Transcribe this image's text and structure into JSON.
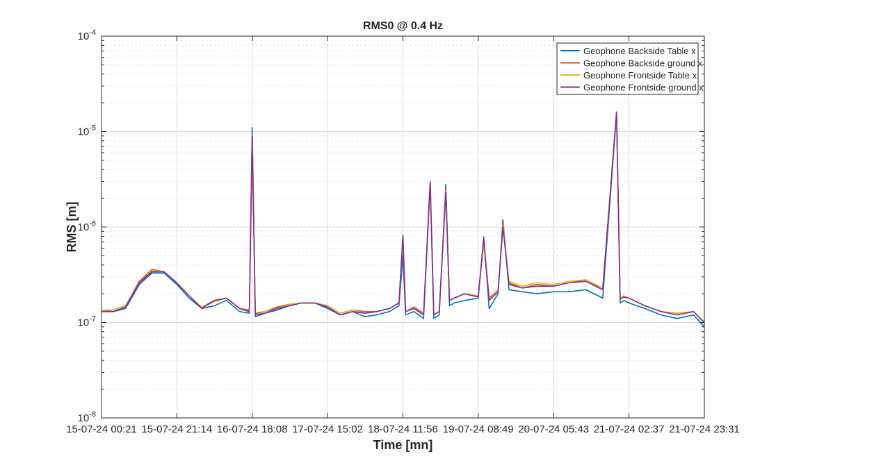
{
  "chart_data": {
    "type": "line",
    "title": "RMS0 @ 0.4 Hz",
    "xlabel": "Time [mn]",
    "ylabel": "RMS [m]",
    "yscale": "log",
    "ylim": [
      1e-08,
      0.0001
    ],
    "y_ticks": [
      "10^-8",
      "10^-7",
      "10^-6",
      "10^-5",
      "10^-4"
    ],
    "x_tick_labels": [
      "15-07-24 00:21",
      "15-07-24 21:14",
      "16-07-24 18:08",
      "17-07-24 15:02",
      "18-07-24 11:56",
      "19-07-24 08:49",
      "20-07-24 05:43",
      "21-07-24 02:37",
      "21-07-24 23:31"
    ],
    "grid": true,
    "legend_position": "top-right",
    "x": [
      "15-07-24 00:21",
      "15-07-24 03:40",
      "15-07-24 07:00",
      "15-07-24 10:50",
      "15-07-24 14:20",
      "15-07-24 17:40",
      "15-07-24 21:14",
      "16-07-24 00:40",
      "16-07-24 04:10",
      "16-07-24 07:40",
      "16-07-24 11:00",
      "16-07-24 14:40",
      "16-07-24 17:20",
      "16-07-24 18:08",
      "16-07-24 19:00",
      "16-07-24 21:40",
      "17-07-24 01:00",
      "17-07-24 04:30",
      "17-07-24 07:50",
      "17-07-24 11:30",
      "17-07-24 15:02",
      "17-07-24 18:30",
      "17-07-24 22:00",
      "18-07-24 01:20",
      "18-07-24 04:40",
      "18-07-24 08:10",
      "18-07-24 10:50",
      "18-07-24 11:56",
      "18-07-24 12:40",
      "18-07-24 15:00",
      "18-07-24 17:40",
      "18-07-24 19:30",
      "18-07-24 20:30",
      "18-07-24 22:00",
      "18-07-24 23:50",
      "19-07-24 00:50",
      "19-07-24 02:10",
      "19-07-24 05:00",
      "19-07-24 08:49",
      "19-07-24 10:20",
      "19-07-24 11:50",
      "19-07-24 14:20",
      "19-07-24 15:40",
      "19-07-24 17:20",
      "19-07-24 21:00",
      "20-07-24 01:00",
      "20-07-24 05:43",
      "20-07-24 10:00",
      "20-07-24 14:40",
      "20-07-24 19:20",
      "20-07-24 23:10",
      "21-07-24 00:10",
      "21-07-24 01:10",
      "21-07-24 02:37",
      "21-07-24 07:00",
      "21-07-24 11:30",
      "21-07-24 16:00",
      "21-07-24 20:30",
      "21-07-24 23:31"
    ],
    "series": [
      {
        "name": "Geophone Backside Table x",
        "color": "#0072BD",
        "values": [
          1.3e-07,
          1.3e-07,
          1.4e-07,
          2.5e-07,
          3.3e-07,
          3.3e-07,
          2.5e-07,
          1.8e-07,
          1.4e-07,
          1.5e-07,
          1.7e-07,
          1.3e-07,
          1.25e-07,
          1.1e-05,
          1.15e-07,
          1.25e-07,
          1.35e-07,
          1.5e-07,
          1.6e-07,
          1.6e-07,
          1.4e-07,
          1.2e-07,
          1.3e-07,
          1.15e-07,
          1.2e-07,
          1.3e-07,
          1.5e-07,
          5e-07,
          1.2e-07,
          1.3e-07,
          1.1e-07,
          2.8e-06,
          1.1e-07,
          1.2e-07,
          2.8e-06,
          1.5e-07,
          1.6e-07,
          1.7e-07,
          1.8e-07,
          7.9e-07,
          1.4e-07,
          2e-07,
          1.2e-06,
          2.2e-07,
          2.1e-07,
          2e-07,
          2.1e-07,
          2.1e-07,
          2.2e-07,
          1.8e-07,
          1.5e-05,
          1.6e-07,
          1.7e-07,
          1.6e-07,
          1.4e-07,
          1.2e-07,
          1.1e-07,
          1.2e-07,
          9e-08
        ]
      },
      {
        "name": "Geophone Backside ground x",
        "color": "#D95319",
        "values": [
          1.3e-07,
          1.35e-07,
          1.5e-07,
          2.7e-07,
          3.6e-07,
          3.4e-07,
          2.6e-07,
          1.9e-07,
          1.45e-07,
          1.7e-07,
          1.8e-07,
          1.4e-07,
          1.35e-07,
          9.5e-06,
          1.25e-07,
          1.3e-07,
          1.45e-07,
          1.55e-07,
          1.6e-07,
          1.6e-07,
          1.5e-07,
          1.25e-07,
          1.35e-07,
          1.3e-07,
          1.3e-07,
          1.4e-07,
          1.6e-07,
          8e-07,
          1.3e-07,
          1.45e-07,
          1.25e-07,
          3e-06,
          1.2e-07,
          1.3e-07,
          2.5e-06,
          1.7e-07,
          1.8e-07,
          2e-07,
          1.9e-07,
          7e-07,
          1.8e-07,
          2.2e-07,
          1.1e-06,
          2.6e-07,
          2.3e-07,
          2.5e-07,
          2.4e-07,
          2.6e-07,
          2.8e-07,
          2.2e-07,
          1.6e-05,
          1.8e-07,
          1.9e-07,
          1.8e-07,
          1.5e-07,
          1.3e-07,
          1.25e-07,
          1.3e-07,
          1e-07
        ]
      },
      {
        "name": "Geophone Frontside Table x",
        "color": "#EDB120",
        "values": [
          1.35e-07,
          1.35e-07,
          1.5e-07,
          2.6e-07,
          3.5e-07,
          3.4e-07,
          2.6e-07,
          1.9e-07,
          1.45e-07,
          1.65e-07,
          1.8e-07,
          1.4e-07,
          1.3e-07,
          9.3e-06,
          1.2e-07,
          1.3e-07,
          1.4e-07,
          1.55e-07,
          1.6e-07,
          1.6e-07,
          1.5e-07,
          1.25e-07,
          1.35e-07,
          1.25e-07,
          1.3e-07,
          1.4e-07,
          1.6e-07,
          7.8e-07,
          1.3e-07,
          1.4e-07,
          1.2e-07,
          2.9e-06,
          1.2e-07,
          1.3e-07,
          2.4e-06,
          1.7e-07,
          1.8e-07,
          2e-07,
          1.9e-07,
          6.8e-07,
          1.7e-07,
          2.2e-07,
          1.05e-06,
          2.7e-07,
          2.4e-07,
          2.6e-07,
          2.5e-07,
          2.7e-07,
          2.8e-07,
          2.3e-07,
          1.55e-05,
          1.8e-07,
          1.9e-07,
          1.8e-07,
          1.5e-07,
          1.3e-07,
          1.25e-07,
          1.3e-07,
          1e-07
        ]
      },
      {
        "name": "Geophone Frontside ground x",
        "color": "#7E2F8E",
        "values": [
          1.3e-07,
          1.3e-07,
          1.45e-07,
          2.6e-07,
          3.4e-07,
          3.4e-07,
          2.6e-07,
          1.9e-07,
          1.4e-07,
          1.7e-07,
          1.8e-07,
          1.4e-07,
          1.3e-07,
          9e-06,
          1.2e-07,
          1.25e-07,
          1.4e-07,
          1.5e-07,
          1.6e-07,
          1.6e-07,
          1.45e-07,
          1.2e-07,
          1.3e-07,
          1.25e-07,
          1.3e-07,
          1.4e-07,
          1.6e-07,
          8.2e-07,
          1.3e-07,
          1.4e-07,
          1.2e-07,
          3e-06,
          1.2e-07,
          1.3e-07,
          2.3e-06,
          1.7e-07,
          1.8e-07,
          2e-07,
          1.85e-07,
          7.5e-07,
          1.7e-07,
          2.1e-07,
          1e-06,
          2.5e-07,
          2.3e-07,
          2.4e-07,
          2.4e-07,
          2.6e-07,
          2.7e-07,
          2.2e-07,
          1.6e-05,
          1.75e-07,
          1.85e-07,
          1.8e-07,
          1.5e-07,
          1.3e-07,
          1.2e-07,
          1.3e-07,
          1e-07
        ]
      }
    ]
  }
}
